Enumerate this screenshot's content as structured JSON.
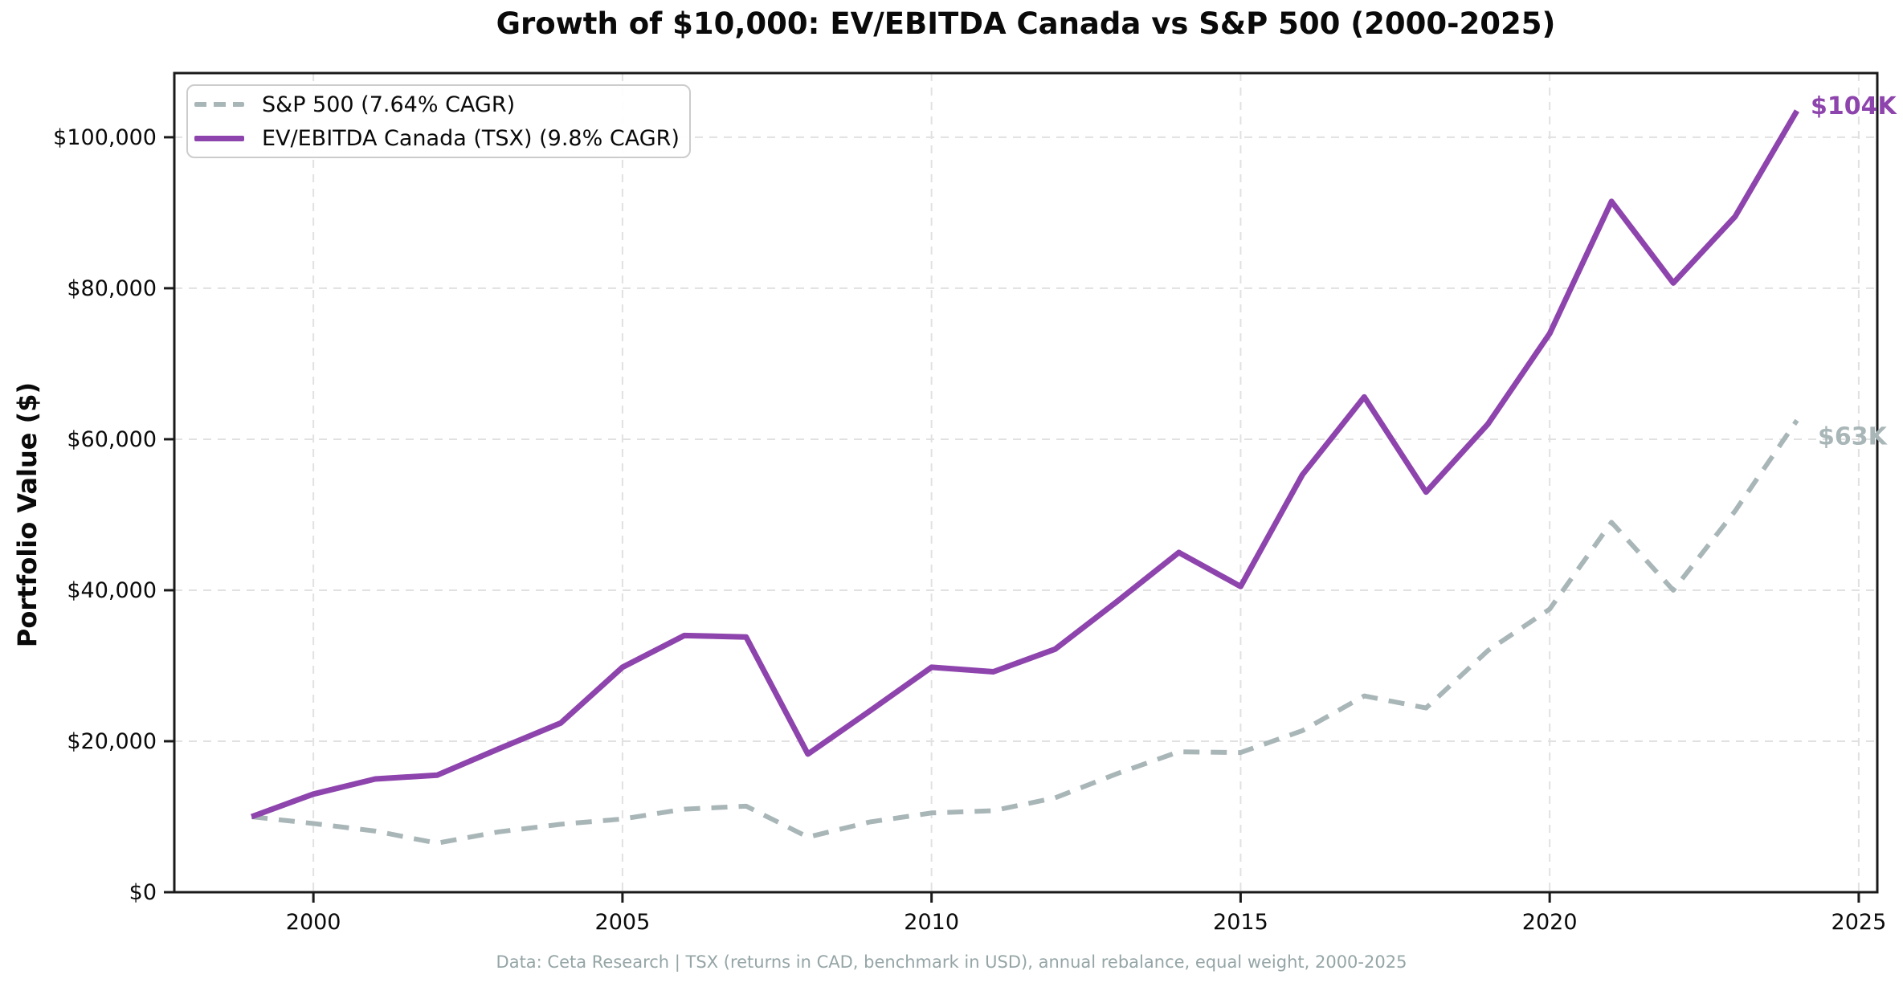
{
  "title": "Growth of $10,000: EV/EBITDA Canada vs S&P 500 (2000-2025)",
  "y_axis_label": "Portfolio Value ($)",
  "footer": "Data: Ceta Research | TSX (returns in CAD, benchmark in USD), annual rebalance, equal weight, 2000-2025",
  "chart_data": {
    "type": "line",
    "title": "Growth of $10,000: EV/EBITDA Canada vs S&P 500 (2000-2025)",
    "xlabel": "",
    "ylabel": "Portfolio Value ($)",
    "grid": true,
    "legend_position": "upper-left",
    "xlim": [
      1997.75,
      2025.3
    ],
    "ylim": [
      0,
      108500
    ],
    "x_ticks": [
      "2000",
      "2005",
      "2010",
      "2015",
      "2020",
      "2025"
    ],
    "x_tick_values": [
      2000,
      2005,
      2010,
      2015,
      2020,
      2025
    ],
    "y_ticks": [
      {
        "value": 0,
        "label": "$0"
      },
      {
        "value": 20000,
        "label": "$20,000"
      },
      {
        "value": 40000,
        "label": "$40,000"
      },
      {
        "value": 60000,
        "label": "$60,000"
      },
      {
        "value": 80000,
        "label": "$80,000"
      },
      {
        "value": 100000,
        "label": "$100,000"
      }
    ],
    "x": [
      1999,
      2000,
      2001,
      2002,
      2003,
      2004,
      2005,
      2006,
      2007,
      2008,
      2009,
      2010,
      2011,
      2012,
      2013,
      2014,
      2015,
      2016,
      2017,
      2018,
      2019,
      2020,
      2021,
      2022,
      2023,
      2024
    ],
    "series": [
      {
        "name": "S&P 500",
        "legend_label": "S&P 500 (7.64% CAGR)",
        "style": "dashed",
        "color": "#a9b6b8",
        "end_label": "$63K",
        "values": [
          10000,
          9100,
          8100,
          6500,
          8000,
          9000,
          9700,
          11000,
          11400,
          7300,
          9300,
          10500,
          10800,
          12500,
          15700,
          18600,
          18500,
          21400,
          26000,
          24400,
          32000,
          37500,
          49000,
          40000,
          50500,
          62500
        ]
      },
      {
        "name": "EV/EBITDA Canada (TSX)",
        "legend_label": "EV/EBITDA Canada (TSX) (9.8% CAGR)",
        "style": "solid",
        "color": "#8e44ad",
        "end_label": "$104K",
        "values": [
          10000,
          13000,
          15000,
          15500,
          19000,
          22400,
          29800,
          34000,
          33800,
          18300,
          24000,
          29800,
          29200,
          32200,
          38500,
          45000,
          40500,
          55300,
          65600,
          53000,
          62000,
          74000,
          91500,
          80700,
          89500,
          103500
        ]
      }
    ]
  }
}
